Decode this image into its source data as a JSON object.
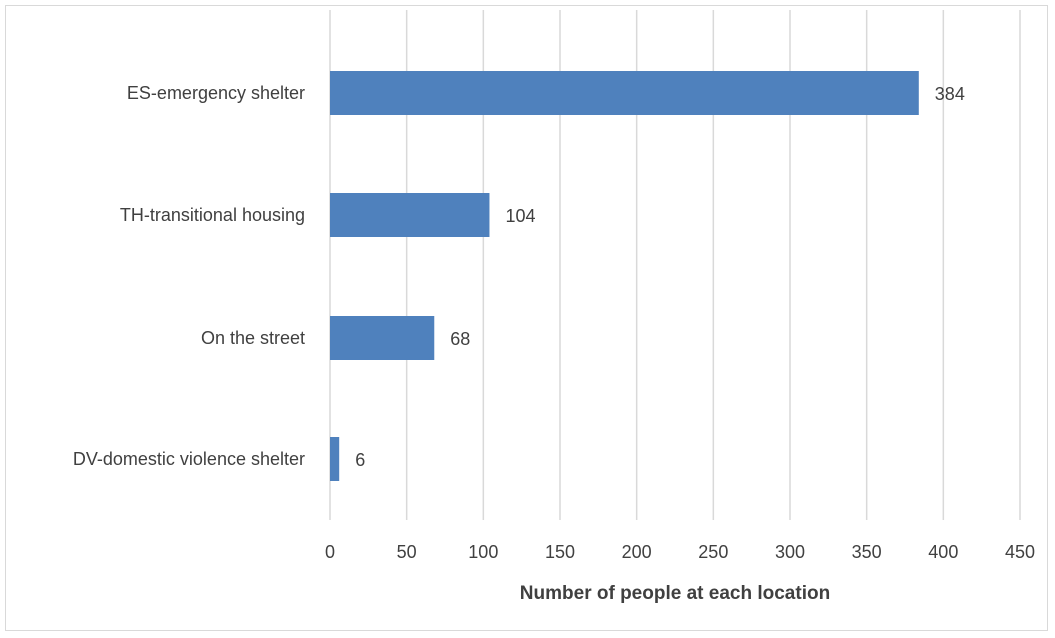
{
  "chart_data": {
    "type": "bar",
    "orientation": "horizontal",
    "categories": [
      "ES-emergency shelter",
      "TH-transitional housing",
      "On the street",
      "DV-domestic violence shelter"
    ],
    "values": [
      384,
      104,
      68,
      6
    ],
    "data_labels": [
      "384",
      "104",
      "68",
      "6"
    ],
    "title": "",
    "xlabel": "Number of people at each location",
    "ylabel": "",
    "xlim": [
      0,
      450
    ],
    "x_ticks": [
      0,
      50,
      100,
      150,
      200,
      250,
      300,
      350,
      400,
      450
    ],
    "x_tick_labels": [
      "0",
      "50",
      "100",
      "150",
      "200",
      "250",
      "300",
      "350",
      "400",
      "450"
    ],
    "grid": "vertical",
    "legend": "none",
    "colors": {
      "bar": "#4f81bd",
      "gridline": "#d9d9d9",
      "text": "#404040",
      "border": "#d9d9d9"
    }
  }
}
